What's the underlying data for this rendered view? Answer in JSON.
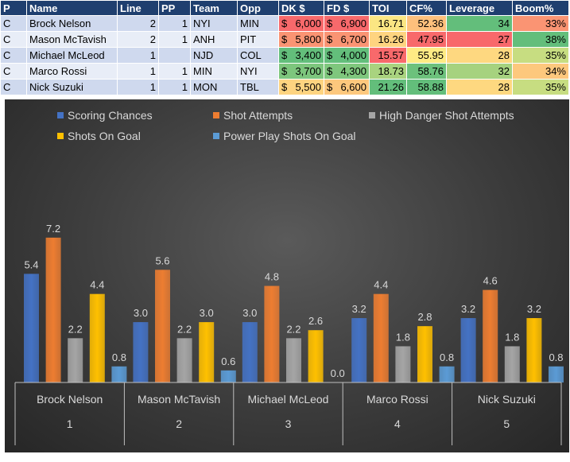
{
  "table": {
    "headers": [
      "P",
      "Name",
      "Line",
      "PP",
      "Team",
      "Opp",
      "DK $",
      "FD $",
      "TOI",
      "CF%",
      "Leverage",
      "Boom%"
    ],
    "rows": [
      {
        "p": "C",
        "name": "Brock Nelson",
        "line": "2",
        "pp": "1",
        "team": "NYI",
        "opp": "MIN",
        "dk": "6,000",
        "fd": "6,900",
        "toi": "16.71",
        "cf": "52.36",
        "leverage": "34",
        "boom": "33%",
        "colors": {
          "dk": "#f8696b",
          "fd": "#f8696b",
          "toi": "#fbe683",
          "cf": "#fec07c",
          "leverage": "#63be7b",
          "boom": "#fa9473"
        }
      },
      {
        "p": "C",
        "name": "Mason McTavish",
        "line": "2",
        "pp": "1",
        "team": "ANH",
        "opp": "PIT",
        "dk": "5,800",
        "fd": "6,700",
        "toi": "16.26",
        "cf": "47.95",
        "leverage": "27",
        "boom": "38%",
        "colors": {
          "dk": "#fa9473",
          "fd": "#fa9473",
          "toi": "#fed480",
          "cf": "#f8696b",
          "leverage": "#f8696b",
          "boom": "#63be7b"
        }
      },
      {
        "p": "C",
        "name": "Michael McLeod",
        "line": "1",
        "pp": "",
        "team": "NJD",
        "opp": "COL",
        "dk": "3,400",
        "fd": "4,000",
        "toi": "15.57",
        "cf": "55.95",
        "leverage": "28",
        "boom": "35%",
        "colors": {
          "dk": "#63be7b",
          "fd": "#63be7b",
          "toi": "#f8696b",
          "cf": "#ffeb84",
          "leverage": "#fed880",
          "boom": "#c7dd81"
        }
      },
      {
        "p": "C",
        "name": "Marco Rossi",
        "line": "1",
        "pp": "1",
        "team": "MIN",
        "opp": "NYI",
        "dk": "3,700",
        "fd": "4,300",
        "toi": "18.73",
        "cf": "58.76",
        "leverage": "32",
        "boom": "34%",
        "colors": {
          "dk": "#7dc67d",
          "fd": "#7fc77d",
          "toi": "#a9d37f",
          "cf": "#6cc17c",
          "leverage": "#a6d27f",
          "boom": "#fdc87d"
        }
      },
      {
        "p": "C",
        "name": "Nick Suzuki",
        "line": "1",
        "pp": "1",
        "team": "MON",
        "opp": "TBL",
        "dk": "5,500",
        "fd": "6,600",
        "toi": "21.26",
        "cf": "58.88",
        "leverage": "28",
        "boom": "35%",
        "colors": {
          "dk": "#fed480",
          "fd": "#fdc87d",
          "toi": "#63be7b",
          "cf": "#63be7b",
          "leverage": "#fed880",
          "boom": "#c7dd81"
        }
      }
    ]
  },
  "chart_data": {
    "type": "bar",
    "categories": [
      "Brock Nelson",
      "Mason McTavish",
      "Michael McLeod",
      "Marco Rossi",
      "Nick Suzuki"
    ],
    "category_numbers": [
      "1",
      "2",
      "3",
      "4",
      "5"
    ],
    "series": [
      {
        "name": "Scoring Chances",
        "color": "#4472c4",
        "values": [
          5.4,
          3.0,
          3.0,
          3.2,
          3.2
        ]
      },
      {
        "name": "Shot Attempts",
        "color": "#ed7d31",
        "values": [
          7.2,
          5.6,
          4.8,
          4.4,
          4.6
        ]
      },
      {
        "name": "High Danger Shot Attempts",
        "color": "#a5a5a5",
        "values": [
          2.2,
          2.2,
          2.2,
          1.8,
          1.8
        ]
      },
      {
        "name": "Shots On Goal",
        "color": "#ffc000",
        "values": [
          4.4,
          3.0,
          2.6,
          2.8,
          3.2
        ]
      },
      {
        "name": "Power Play Shots On Goal",
        "color": "#5b9bd5",
        "values": [
          0.8,
          0.6,
          0.0,
          0.8,
          0.8
        ]
      }
    ],
    "ylim": [
      0,
      8
    ],
    "grid": false,
    "legend_position": "top"
  }
}
